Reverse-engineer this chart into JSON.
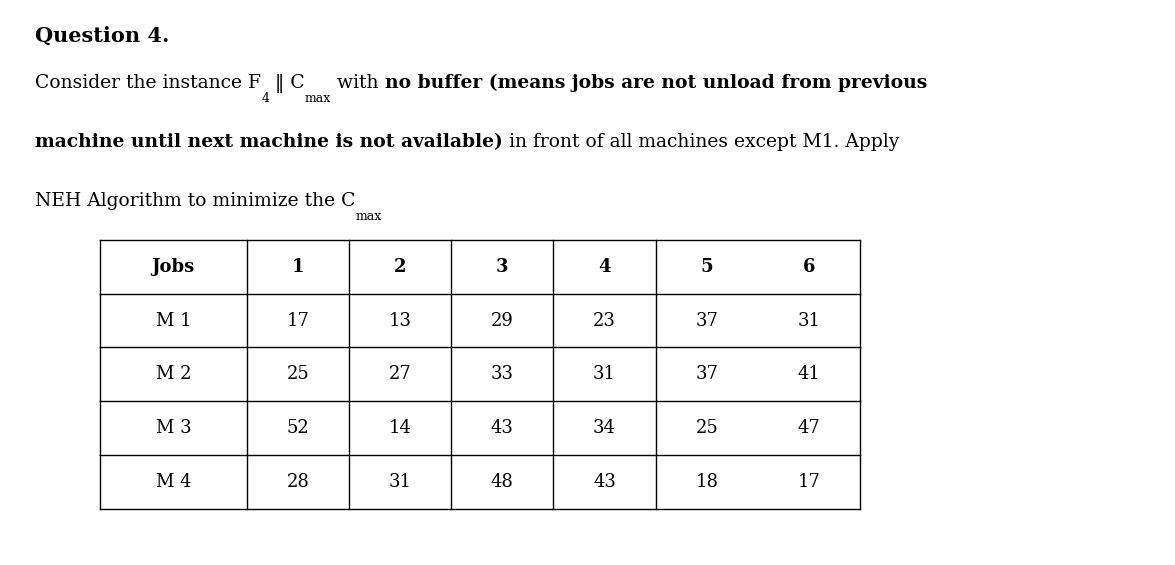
{
  "title": "Question 4.",
  "bg_color": "#ffffff",
  "text_color": "#000000",
  "table_border_color": "#000000",
  "font_size_title": 15,
  "font_size_body": 13.5,
  "font_size_table": 13,
  "font_size_sub": 9,
  "table_headers": [
    "Jobs",
    "1",
    "2",
    "3",
    "4",
    "5",
    "6"
  ],
  "table_rows": [
    [
      "M 1",
      "17",
      "13",
      "29",
      "23",
      "37",
      "31"
    ],
    [
      "M 2",
      "25",
      "27",
      "33",
      "31",
      "37",
      "41"
    ],
    [
      "M 3",
      "52",
      "14",
      "43",
      "34",
      "25",
      "47"
    ],
    [
      "M 4",
      "28",
      "31",
      "48",
      "43",
      "18",
      "17"
    ]
  ]
}
